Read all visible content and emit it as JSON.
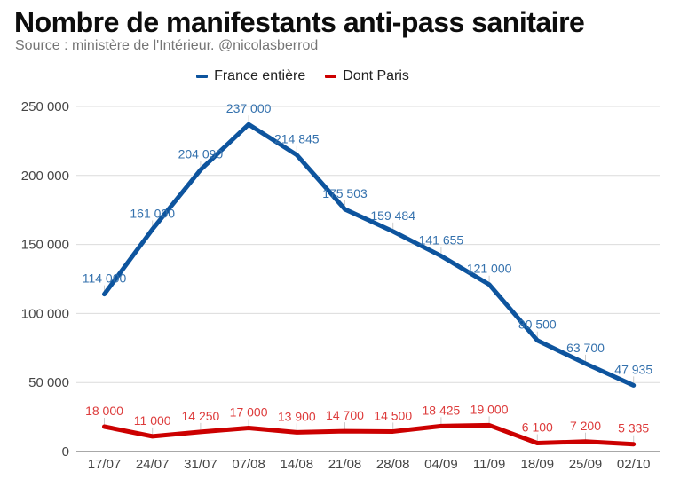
{
  "header": {
    "title": "Nombre de manifestants anti-pass sanitaire",
    "subtitle": "Source : ministère de l'Intérieur. @nicolasberrod"
  },
  "legend": [
    {
      "label": "France entière",
      "color": "#0d549e"
    },
    {
      "label": "Dont Paris",
      "color": "#cc0000"
    }
  ],
  "chart_data": {
    "type": "line",
    "title": "Nombre de manifestants anti-pass sanitaire",
    "source": "Source : ministère de l'Intérieur. @nicolasberrod",
    "categories": [
      "17/07",
      "24/07",
      "31/07",
      "07/08",
      "14/08",
      "21/08",
      "28/08",
      "04/09",
      "11/09",
      "18/09",
      "25/09",
      "02/10"
    ],
    "series": [
      {
        "name": "France entière",
        "color": "#0d549e",
        "label_color": "#3471ad",
        "values": [
          114000,
          161000,
          204090,
          237000,
          214845,
          175503,
          159484,
          141655,
          121000,
          80500,
          63700,
          47935
        ],
        "labels": [
          "114 000",
          "161 000",
          "204 090",
          "237 000",
          "214 845",
          "175 503",
          "159 484",
          "141 655",
          "121 000",
          "80 500",
          "63 700",
          "47 935"
        ]
      },
      {
        "name": "Dont Paris",
        "color": "#cc0000",
        "label_color": "#dd3b3b",
        "values": [
          18000,
          11000,
          14250,
          17000,
          13900,
          14700,
          14500,
          18425,
          19000,
          6100,
          7200,
          5335
        ],
        "labels": [
          "18 000",
          "11 000",
          "14 250",
          "17 000",
          "13 900",
          "14 700",
          "14 500",
          "18 425",
          "19 000",
          "6 100",
          "7 200",
          "5 335"
        ]
      }
    ],
    "ylim": [
      0,
      250000
    ],
    "yticks": [
      {
        "value": 0,
        "label": "0"
      },
      {
        "value": 50000,
        "label": "50 000"
      },
      {
        "value": 100000,
        "label": "100 000"
      },
      {
        "value": 150000,
        "label": "150 000"
      },
      {
        "value": 200000,
        "label": "200 000"
      },
      {
        "value": 250000,
        "label": "250 000"
      }
    ],
    "grid": true,
    "legend_position": "top"
  }
}
